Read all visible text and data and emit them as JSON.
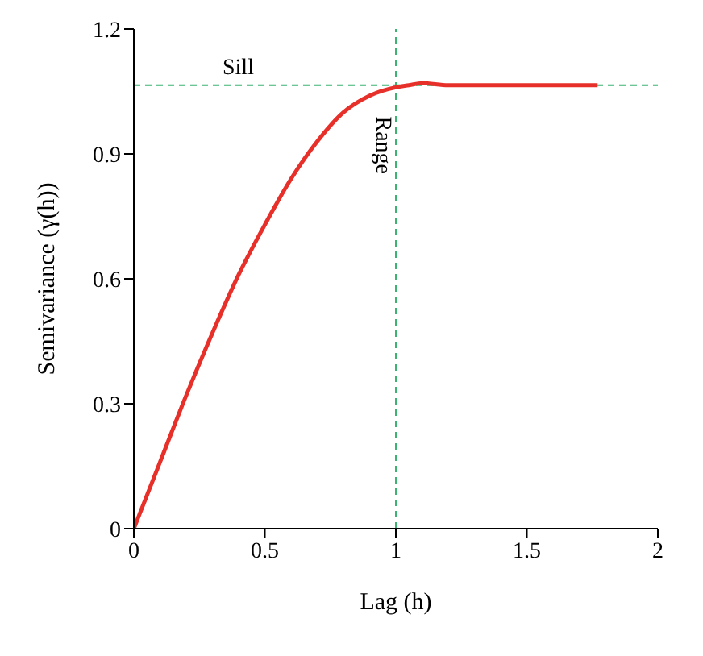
{
  "chart_data": {
    "type": "line",
    "xlabel": "Lag (h)",
    "ylabel": "Semivariance (γ(h))",
    "x": [
      0,
      0.1,
      0.2,
      0.3,
      0.4,
      0.5,
      0.6,
      0.7,
      0.8,
      0.9,
      1.0,
      1.05,
      1.1,
      1.2,
      1.77
    ],
    "series": [
      {
        "color": "#e8302a",
        "values": [
          0,
          0.16,
          0.32,
          0.47,
          0.61,
          0.73,
          0.84,
          0.93,
          1.0,
          1.04,
          1.06,
          1.065,
          1.07,
          1.065,
          1.065
        ]
      }
    ],
    "xlim": [
      0,
      2
    ],
    "xticks": [
      0,
      0.5,
      1,
      1.5,
      2
    ],
    "ylim": [
      0,
      1.2
    ],
    "yticks": [
      0,
      0.3,
      0.6,
      0.9,
      1.2
    ],
    "grid": false,
    "legend": false,
    "marker": "none",
    "line_style": "solid",
    "ref_lines": [
      {
        "axis": "y",
        "value": 1.065,
        "label": "Sill",
        "color": "#3cb371",
        "line_style": "dashed"
      },
      {
        "axis": "x",
        "value": 1,
        "label": "Range",
        "color": "#3cb371",
        "line_style": "dashed"
      }
    ]
  }
}
